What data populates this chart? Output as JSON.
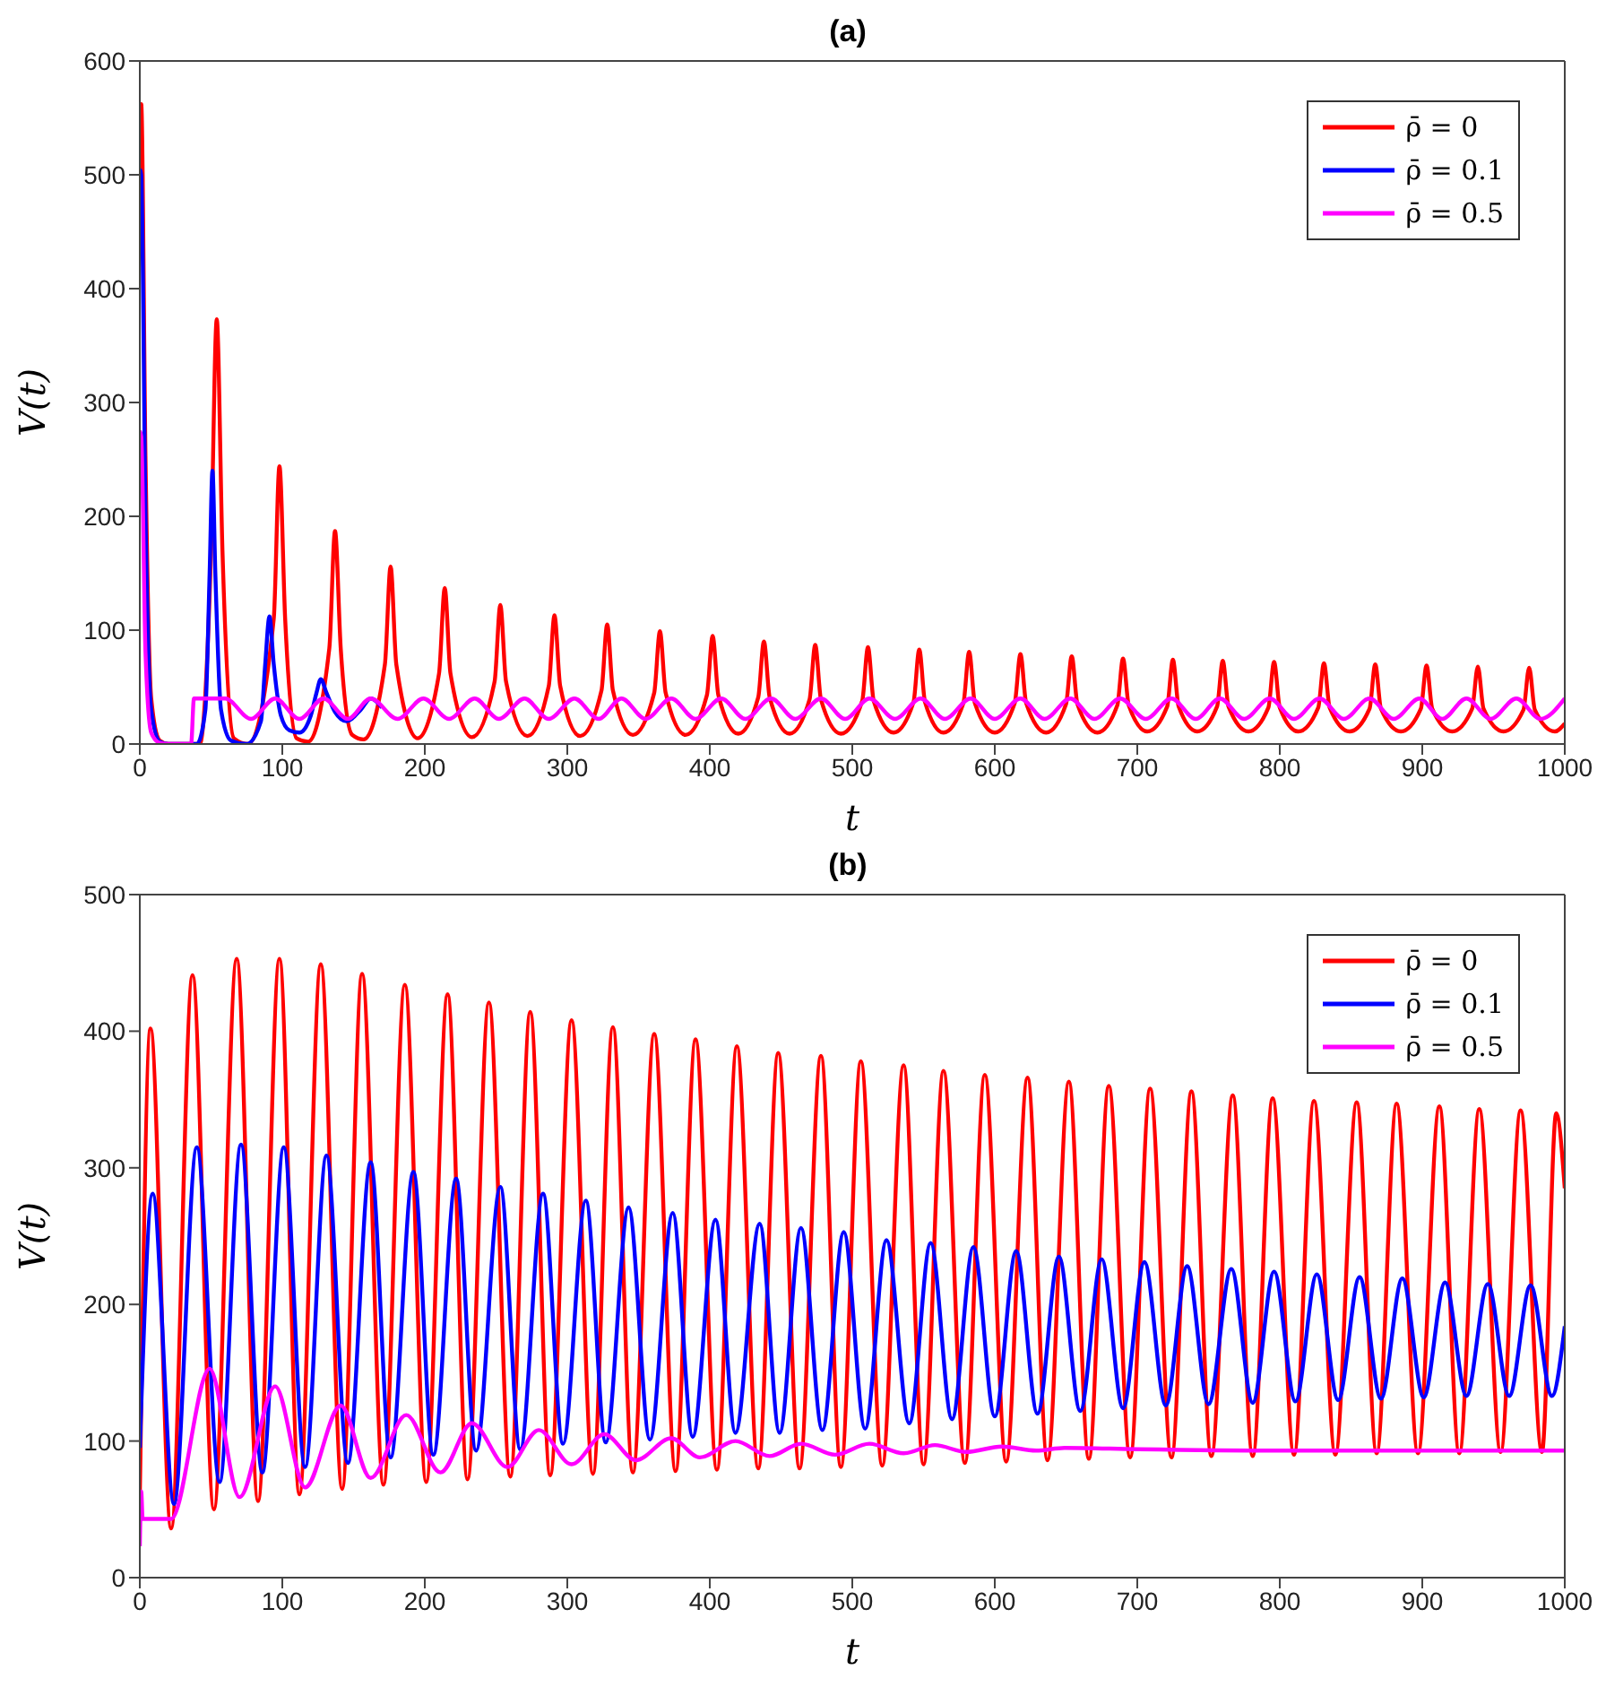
{
  "chart_data": [
    {
      "type": "line",
      "title": "(a)",
      "xlabel": "t",
      "ylabel": "V(t)",
      "xlim": [
        0,
        1000
      ],
      "xticks": [
        0,
        100,
        200,
        300,
        400,
        500,
        600,
        700,
        800,
        900,
        1000
      ],
      "ylim": [
        0,
        600
      ],
      "yticks": [
        0,
        100,
        200,
        300,
        400,
        500,
        600
      ],
      "legend": "top right",
      "series": [
        {
          "name": "ρ̄ = 0",
          "color": "#ff0000",
          "x": [
            0,
            1,
            4,
            8,
            14,
            20,
            42,
            50,
            54,
            58,
            66,
            76,
            94,
            98,
            102,
            110,
            118,
            133,
            137,
            141,
            149,
            157,
            172,
            176,
            180,
            195,
            210,
            214,
            218,
            233,
            249,
            253,
            257,
            272,
            287,
            291,
            295,
            309,
            324,
            328,
            332,
            346,
            361,
            365,
            369,
            383,
            398,
            402,
            406,
            420,
            434,
            438,
            442,
            456,
            470,
            474,
            478,
            492,
            507,
            511,
            515,
            529,
            543,
            547,
            551,
            564,
            578,
            582,
            586,
            600,
            614,
            618,
            622,
            636,
            650,
            654,
            658,
            672,
            686,
            690,
            694,
            707,
            721,
            725,
            729,
            742,
            756,
            760,
            764,
            778,
            792,
            796,
            800,
            813,
            827,
            831,
            835,
            849,
            863,
            867,
            871,
            885,
            899,
            903,
            907,
            921,
            935,
            939,
            943,
            957,
            971,
            975,
            979,
            993,
            1000
          ],
          "values": [
            560,
            562,
            250,
            40,
            3,
            0,
            0,
            170,
            373,
            170,
            5,
            0,
            110,
            244,
            110,
            5,
            2,
            84,
            187,
            84,
            8,
            4,
            70,
            156,
            70,
            5,
            62,
            137,
            62,
            6,
            55,
            122,
            55,
            7,
            51,
            113,
            51,
            7,
            47,
            105,
            47,
            8,
            45,
            99,
            45,
            8,
            43,
            95,
            43,
            9,
            41,
            90,
            41,
            9,
            39,
            87,
            39,
            9,
            38,
            85,
            38,
            10,
            37,
            83,
            37,
            10,
            36,
            81,
            36,
            10,
            36,
            79,
            36,
            10,
            35,
            77,
            35,
            10,
            34,
            75,
            34,
            11,
            33,
            74,
            33,
            11,
            33,
            73,
            33,
            11,
            32,
            72,
            32,
            11,
            32,
            71,
            32,
            11,
            31,
            70,
            31,
            11,
            31,
            69,
            31,
            11,
            31,
            68,
            31,
            11,
            30,
            67,
            30,
            11,
            18
          ]
        },
        {
          "name": "ρ̄ = 0.1",
          "color": "#0000ff",
          "x": [
            0,
            1,
            4,
            8,
            14,
            20,
            40,
            46,
            49,
            51,
            53,
            57,
            64,
            75,
            85,
            88,
            91,
            94,
            99,
            105,
            112,
            120,
            124,
            127,
            131,
            137,
            145,
            155,
            162,
            170
          ],
          "values": [
            505,
            500,
            200,
            30,
            2,
            0,
            0,
            30,
            150,
            240,
            150,
            30,
            3,
            0,
            20,
            70,
            112,
            70,
            25,
            12,
            10,
            25,
            45,
            57,
            45,
            28,
            20,
            30,
            40,
            32
          ]
        },
        {
          "name": "ρ̄ = 0.5",
          "color": "#ff00ff",
          "x": [
            0,
            1,
            4,
            8,
            14,
            20,
            36,
            38,
            60,
            78,
            95,
            112,
            129,
            146,
            162,
            181,
            199,
            217,
            235,
            252,
            270,
            287,
            305,
            322,
            338,
            355,
            373,
            390,
            408,
            425,
            443,
            460,
            478,
            495,
            512,
            530,
            548,
            565,
            583,
            600,
            618,
            635,
            653,
            670,
            688,
            706,
            724,
            741,
            758,
            775,
            793,
            810,
            828,
            845,
            863,
            880,
            898,
            914,
            931,
            948,
            966,
            983,
            1000
          ],
          "values": [
            275,
            270,
            80,
            10,
            1,
            0,
            0,
            40,
            40,
            22,
            40,
            22,
            40,
            22,
            40,
            22,
            40,
            22,
            40,
            22,
            40,
            22,
            40,
            22,
            40,
            22,
            40,
            22,
            40,
            22,
            40,
            22,
            40,
            22,
            40,
            22,
            40,
            22,
            40,
            22,
            40,
            22,
            40,
            22,
            40,
            22,
            40,
            22,
            40,
            22,
            40,
            22,
            40,
            22,
            40,
            22,
            40,
            22,
            40,
            22,
            40,
            22,
            40
          ]
        }
      ]
    },
    {
      "type": "line",
      "title": "(b)",
      "xlabel": "t",
      "ylabel": "V(t)",
      "xlim": [
        0,
        1000
      ],
      "xticks": [
        0,
        100,
        200,
        300,
        400,
        500,
        600,
        700,
        800,
        900,
        1000
      ],
      "ylim": [
        0,
        500
      ],
      "yticks": [
        0,
        100,
        200,
        300,
        400,
        500
      ],
      "legend": "top right",
      "series": [
        {
          "name": "ρ̄ = 0",
          "color": "#ff0000",
          "x": [
            0,
            7.5,
            22,
            37,
            52,
            68,
            83,
            98,
            112,
            127,
            142,
            156,
            171,
            186,
            201,
            216,
            230,
            245,
            260,
            274,
            288,
            303,
            318,
            332,
            346,
            361,
            376,
            390,
            405,
            419,
            434,
            448,
            463,
            478,
            492,
            506,
            521,
            536,
            550,
            564,
            579,
            593,
            608,
            623,
            637,
            652,
            666,
            680,
            695,
            709,
            724,
            738,
            752,
            767,
            781,
            795,
            810,
            824,
            839,
            854,
            868,
            882,
            897,
            912,
            926,
            940,
            955,
            969,
            984,
            994,
            1000
          ],
          "values": [
            60,
            402,
            36,
            441,
            50,
            453,
            56,
            453,
            61,
            449,
            65,
            442,
            68,
            434,
            70,
            427,
            72,
            421,
            74,
            414,
            75,
            408,
            76,
            403,
            77,
            398,
            78,
            394,
            79,
            389,
            80,
            384,
            80,
            382,
            81,
            378,
            82,
            375,
            83,
            371,
            84,
            368,
            85,
            366,
            86,
            363,
            87,
            360,
            88,
            358,
            88,
            356,
            89,
            353,
            89,
            351,
            90,
            349,
            90,
            348,
            91,
            347,
            91,
            345,
            91,
            343,
            92,
            342,
            92,
            340,
            285
          ]
        },
        {
          "name": "ρ̄ = 0.1",
          "color": "#0000ff",
          "x": [
            0,
            9,
            24,
            40,
            56,
            71,
            86,
            101,
            116,
            131,
            146,
            162,
            176,
            192,
            206,
            222,
            236,
            253,
            267,
            283,
            297,
            313,
            327,
            343,
            358,
            374,
            388,
            404,
            418,
            435,
            449,
            464,
            479,
            494,
            509,
            524,
            540,
            555,
            570,
            585,
            600,
            615,
            630,
            645,
            660,
            675,
            690,
            705,
            720,
            735,
            750,
            766,
            781,
            796,
            811,
            826,
            841,
            856,
            871,
            886,
            901,
            916,
            931,
            946,
            961,
            976,
            991,
            1000
          ],
          "values": [
            95,
            281,
            54,
            315,
            70,
            317,
            77,
            315,
            81,
            309,
            84,
            304,
            88,
            297,
            90,
            292,
            93,
            286,
            94,
            281,
            98,
            276,
            99,
            271,
            101,
            267,
            103,
            262,
            106,
            259,
            106,
            256,
            108,
            253,
            109,
            247,
            113,
            245,
            116,
            242,
            118,
            239,
            120,
            235,
            122,
            233,
            124,
            231,
            126,
            228,
            127,
            226,
            128,
            224,
            129,
            222,
            130,
            220,
            131,
            219,
            132,
            216,
            133,
            215,
            133,
            214,
            133,
            184
          ]
        },
        {
          "name": "ρ̄ = 0.5",
          "color": "#ff00ff",
          "x": [
            0,
            1,
            2,
            22,
            49,
            70,
            95,
            116,
            141,
            162,
            187,
            211,
            233,
            258,
            280,
            303,
            326,
            348,
            373,
            393,
            418,
            442,
            464,
            488,
            512,
            536,
            558,
            580,
            605,
            629,
            649,
            700,
            800,
            900,
            1000
          ],
          "values": [
            23,
            63,
            43,
            43,
            153,
            59,
            140,
            66,
            126,
            73,
            119,
            77,
            113,
            81,
            108,
            83,
            105,
            86,
            102,
            88,
            100,
            89,
            98,
            90,
            98,
            91,
            97,
            92,
            96,
            93,
            95,
            94,
            93,
            93,
            93
          ]
        }
      ]
    }
  ]
}
